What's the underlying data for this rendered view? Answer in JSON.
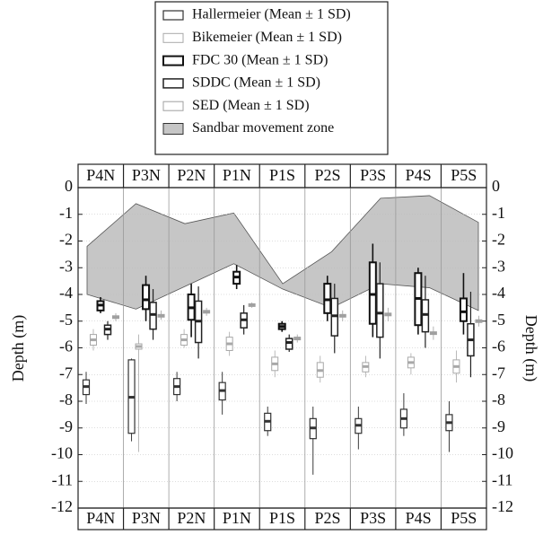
{
  "chart_data": {
    "type": "box",
    "ylabel": "Depth (m)",
    "categories": [
      "P4N",
      "P3N",
      "P2N",
      "P1N",
      "P1S",
      "P2S",
      "P3S",
      "P4S",
      "P5S"
    ],
    "ylim": [
      -12,
      0
    ],
    "yticks": [
      0,
      -1,
      -2,
      -3,
      -4,
      -5,
      -6,
      -7,
      -8,
      -9,
      -10,
      -11,
      -12
    ],
    "grid": true,
    "series": [
      {
        "name": "Hallermeier (Mean ± 1 SD)",
        "color": "#333333",
        "line_width": 1.2,
        "mean": [
          -7.45,
          -7.85,
          -7.45,
          -7.6,
          -8.75,
          -9.0,
          -8.9,
          -8.65,
          -8.8
        ],
        "lower": [
          -7.75,
          -9.2,
          -7.75,
          -7.95,
          -9.1,
          -9.4,
          -9.2,
          -9.0,
          -9.1
        ],
        "upper": [
          -7.2,
          -6.45,
          -7.15,
          -7.3,
          -8.45,
          -8.65,
          -8.65,
          -8.3,
          -8.5
        ],
        "min": [
          -8.1,
          -9.5,
          -8.0,
          -8.5,
          -9.3,
          -10.75,
          -9.8,
          -9.3,
          -9.9
        ],
        "max": [
          -6.9,
          -6.4,
          -6.9,
          -6.9,
          -8.2,
          -8.2,
          -8.2,
          -7.7,
          -8.0
        ]
      },
      {
        "name": "Bikemeier (Mean ± 1 SD)",
        "color": "#a8a8a8",
        "line_width": 1,
        "mean": [
          -5.7,
          -5.95,
          -5.7,
          -5.85,
          -6.6,
          -6.85,
          -6.7,
          -6.55,
          -6.7
        ],
        "lower": [
          -5.9,
          -6.05,
          -5.9,
          -6.1,
          -6.85,
          -7.1,
          -6.9,
          -6.75,
          -6.95
        ],
        "upper": [
          -5.5,
          -5.85,
          -5.5,
          -5.6,
          -6.35,
          -6.55,
          -6.55,
          -6.35,
          -6.45
        ],
        "min": [
          -6.1,
          -9.9,
          -6.0,
          -6.3,
          -7.1,
          -7.3,
          -7.1,
          -7.0,
          -7.3
        ],
        "max": [
          -5.3,
          -5.5,
          -5.3,
          -5.4,
          -6.1,
          -6.3,
          -6.3,
          -6.2,
          -6.1
        ]
      },
      {
        "name": "FDC 30 (Mean ± 1 SD)",
        "color": "#111111",
        "line_width": 2,
        "mean": [
          -4.4,
          -4.2,
          -4.5,
          -3.35,
          -5.2,
          -4.2,
          -4.0,
          -4.15,
          -4.65
        ],
        "lower": [
          -4.6,
          -4.55,
          -4.95,
          -3.6,
          -5.3,
          -4.7,
          -5.1,
          -5.15,
          -5.0
        ],
        "upper": [
          -4.25,
          -3.65,
          -4.0,
          -3.15,
          -5.1,
          -3.6,
          -2.8,
          -3.2,
          -4.15
        ],
        "min": [
          -4.7,
          -5.0,
          -5.6,
          -3.8,
          -5.4,
          -5.0,
          -5.6,
          -5.5,
          -5.5
        ],
        "max": [
          -4.1,
          -3.3,
          -3.6,
          -2.9,
          -5.0,
          -3.3,
          -2.1,
          -3.0,
          -3.2
        ]
      },
      {
        "name": "SDDC (Mean ± 1 SD)",
        "color": "#222222",
        "line_width": 1.5,
        "mean": [
          -5.3,
          -4.75,
          -5.0,
          -4.95,
          -5.8,
          -4.8,
          -4.7,
          -4.75,
          -5.7
        ],
        "lower": [
          -5.5,
          -5.3,
          -5.8,
          -5.25,
          -6.05,
          -5.55,
          -5.6,
          -5.4,
          -6.3
        ],
        "upper": [
          -5.15,
          -4.3,
          -4.25,
          -4.7,
          -5.65,
          -4.15,
          -3.6,
          -4.2,
          -5.1
        ],
        "min": [
          -5.7,
          -5.7,
          -6.4,
          -5.5,
          -6.15,
          -6.2,
          -6.4,
          -6.0,
          -7.1
        ],
        "max": [
          -5.0,
          -3.8,
          -3.7,
          -4.4,
          -5.5,
          -3.6,
          -2.8,
          -3.3,
          -3.9
        ]
      },
      {
        "name": "SED (Mean ± 1 SD)",
        "color": "#a0a0a0",
        "line_width": 1,
        "mean": [
          -4.85,
          -4.8,
          -4.65,
          -4.4,
          -5.65,
          -4.8,
          -4.75,
          -5.45,
          -5.0
        ],
        "lower": [
          -4.9,
          -4.85,
          -4.7,
          -4.45,
          -5.7,
          -4.85,
          -4.8,
          -5.5,
          -5.05
        ],
        "upper": [
          -4.8,
          -4.75,
          -4.6,
          -4.35,
          -5.6,
          -4.75,
          -4.7,
          -5.4,
          -4.95
        ],
        "min": [
          -5.0,
          -4.95,
          -4.8,
          -4.5,
          -5.8,
          -5.0,
          -5.0,
          -5.7,
          -5.2
        ],
        "max": [
          -4.7,
          -4.6,
          -4.5,
          -4.3,
          -5.5,
          -4.6,
          -4.5,
          -5.2,
          -4.8
        ]
      }
    ],
    "sandbar_zone": {
      "name": "Sandbar movement zone",
      "color": "#c6c6c6",
      "upper": [
        -2.2,
        -0.6,
        -1.35,
        -0.95,
        -3.6,
        -2.4,
        -0.4,
        -0.3,
        -1.3
      ],
      "lower": [
        -4.0,
        -4.55,
        -3.7,
        -2.85,
        -3.8,
        -4.5,
        -3.6,
        -3.75,
        -4.6
      ]
    }
  }
}
